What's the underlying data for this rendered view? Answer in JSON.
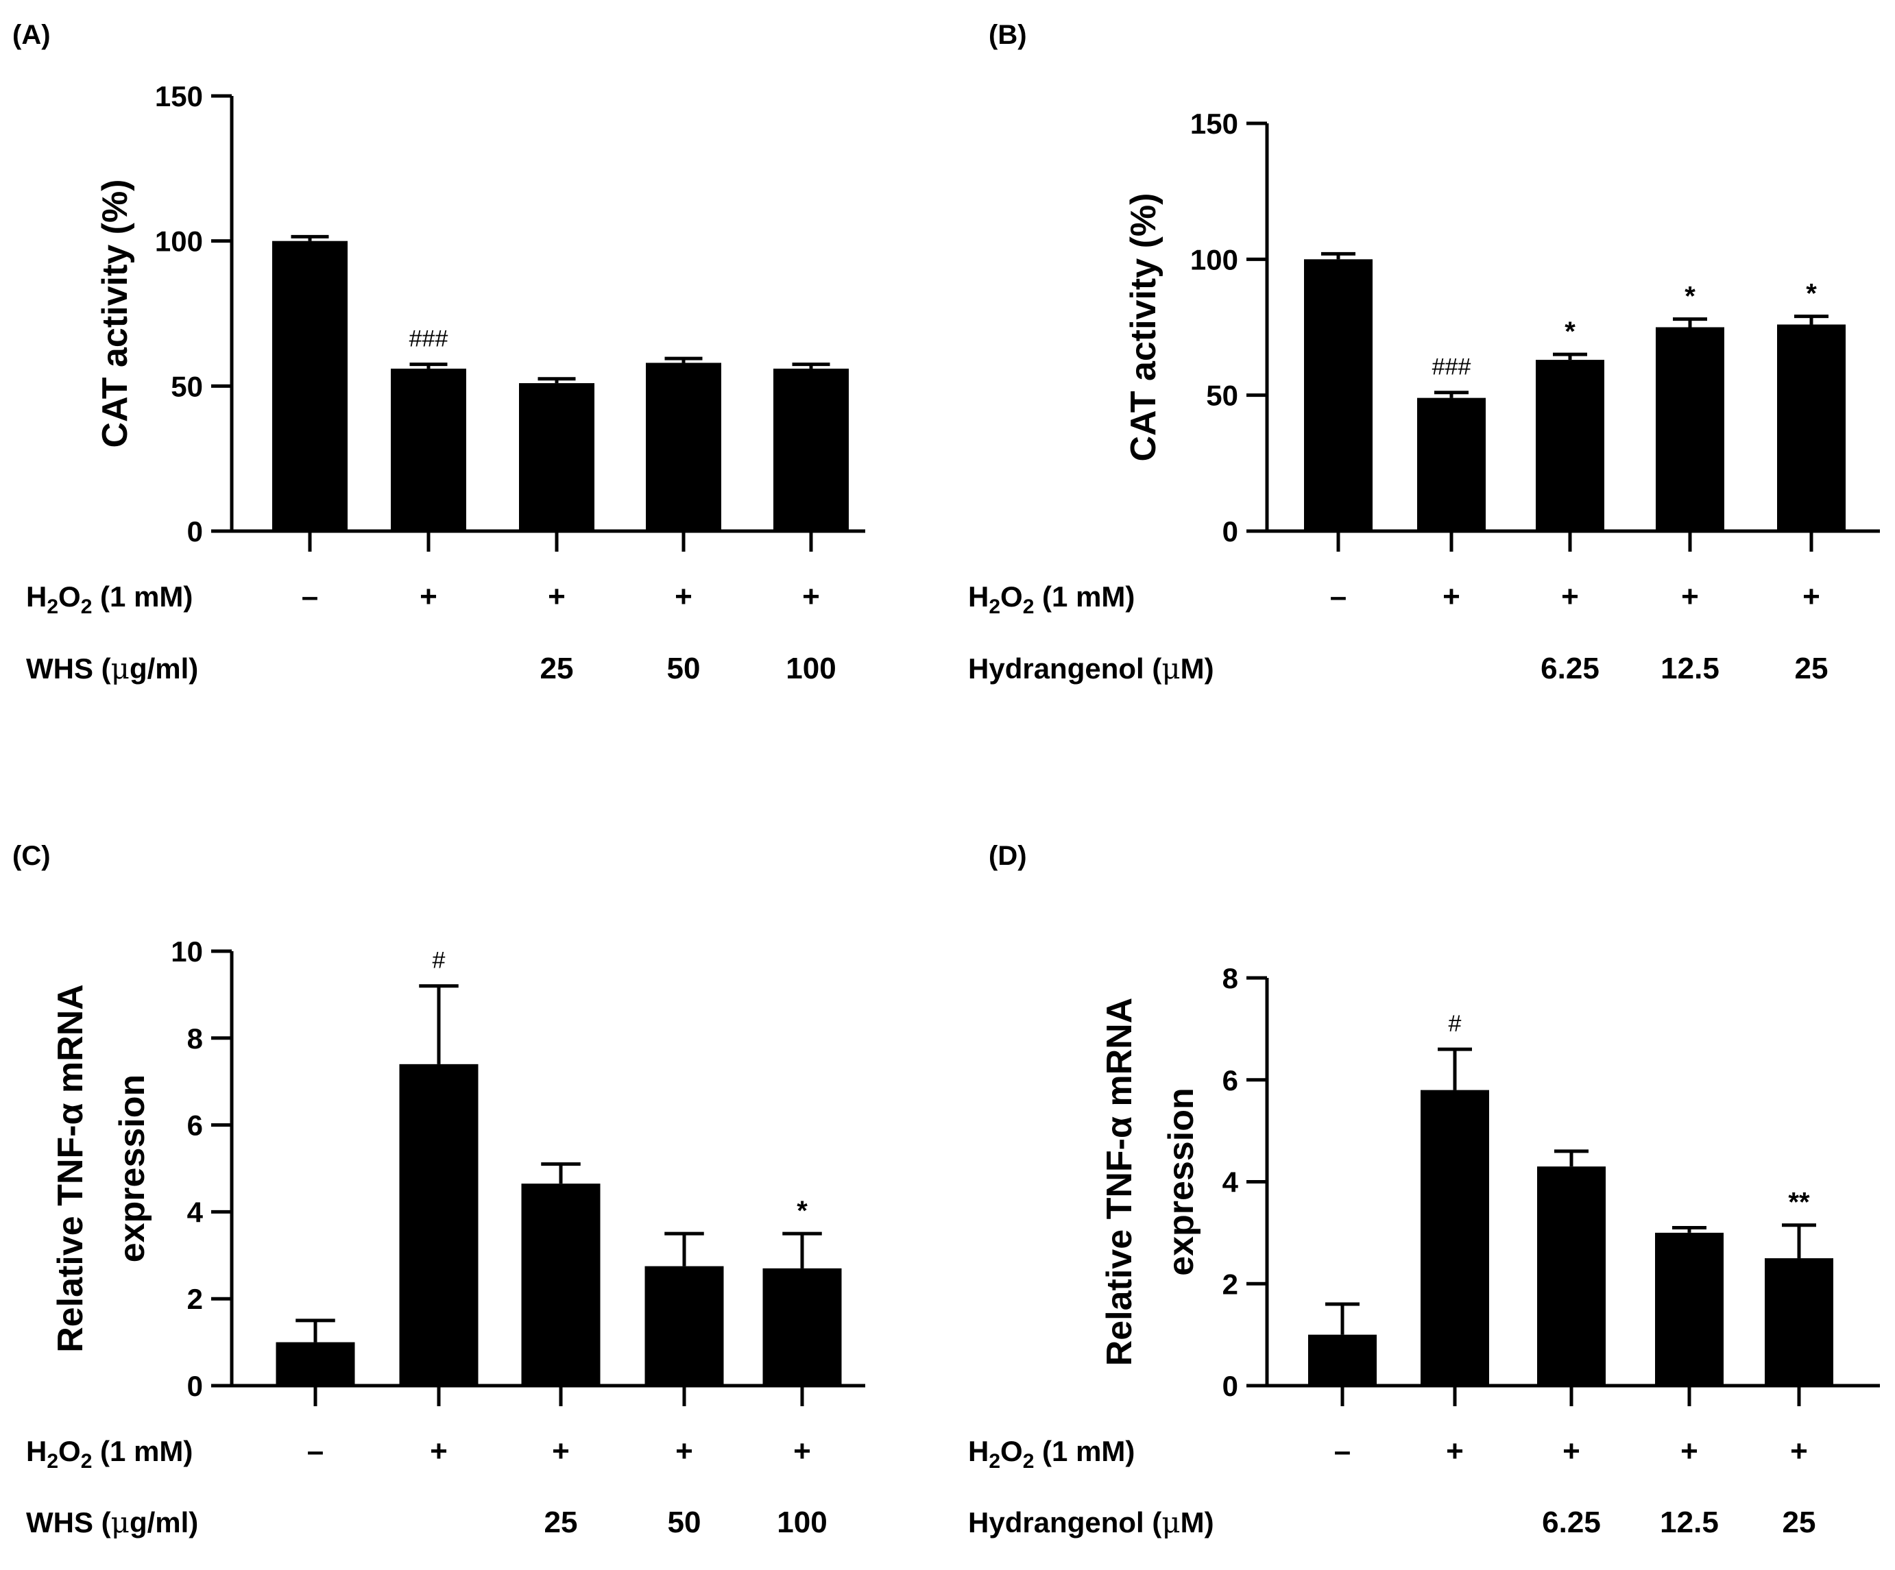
{
  "chart_data": [
    {
      "panel_label": "(A)",
      "type": "bar",
      "ylabel": "CAT activity (%)",
      "ylim": [
        0,
        150
      ],
      "yticks": [
        0,
        50,
        100,
        150
      ],
      "values": [
        100,
        56,
        51,
        58,
        56
      ],
      "errors": [
        1.5,
        1.5,
        1.5,
        1.5,
        1.5
      ],
      "annotations": [
        "",
        "###",
        "",
        "",
        ""
      ],
      "rows": [
        {
          "label_main": "H",
          "label_sub1": "2",
          "label_mid": "O",
          "label_sub2": "2",
          "label_rest": " (1 mM)",
          "cells": [
            "–",
            "+",
            "+",
            "+",
            "+"
          ]
        },
        {
          "label_main": "WHS (",
          "label_mu": "μ",
          "label_rest": "g/ml)",
          "cells": [
            "",
            "",
            "25",
            "50",
            "100"
          ]
        }
      ]
    },
    {
      "panel_label": "(B)",
      "type": "bar",
      "ylabel": "CAT activity (%)",
      "ylim": [
        0,
        150
      ],
      "yticks": [
        0,
        50,
        100,
        150
      ],
      "values": [
        100,
        49,
        63,
        75,
        76
      ],
      "errors": [
        2,
        2,
        2,
        3,
        3
      ],
      "annotations": [
        "",
        "###",
        "*",
        "*",
        "*"
      ],
      "rows": [
        {
          "label_main": "H",
          "label_sub1": "2",
          "label_mid": "O",
          "label_sub2": "2",
          "label_rest": " (1 mM)",
          "cells": [
            "–",
            "+",
            "+",
            "+",
            "+"
          ]
        },
        {
          "label_main": "Hydrangenol (",
          "label_mu": "μ",
          "label_rest": "M)",
          "cells": [
            "",
            "",
            "6.25",
            "12.5",
            "25"
          ]
        }
      ]
    },
    {
      "panel_label": "(C)",
      "type": "bar",
      "ylabel": "Relative TNF-α mRNA\nexpression",
      "ylabel_line1": "Relative TNF-α mRNA",
      "ylabel_line2": "expression",
      "ylim": [
        0,
        10
      ],
      "yticks": [
        0,
        2,
        4,
        6,
        8,
        10
      ],
      "values": [
        1.0,
        7.4,
        4.65,
        2.75,
        2.7
      ],
      "errors": [
        0.5,
        1.8,
        0.45,
        0.75,
        0.8
      ],
      "annotations": [
        "",
        "#",
        "",
        "",
        "*"
      ],
      "rows": [
        {
          "label_main": "H",
          "label_sub1": "2",
          "label_mid": "O",
          "label_sub2": "2",
          "label_rest": " (1 mM)",
          "cells": [
            "–",
            "+",
            "+",
            "+",
            "+"
          ]
        },
        {
          "label_main": "WHS (",
          "label_mu": "μ",
          "label_rest": "g/ml)",
          "cells": [
            "",
            "",
            "25",
            "50",
            "100"
          ]
        }
      ]
    },
    {
      "panel_label": "(D)",
      "type": "bar",
      "ylabel": "Relative TNF-α mRNA\nexpression",
      "ylabel_line1": "Relative TNF-α mRNA",
      "ylabel_line2": "expression",
      "ylim": [
        0,
        8
      ],
      "yticks": [
        0,
        2,
        4,
        6,
        8
      ],
      "values": [
        1.0,
        5.8,
        4.3,
        3.0,
        2.5
      ],
      "errors": [
        0.6,
        0.8,
        0.3,
        0.1,
        0.65
      ],
      "annotations": [
        "",
        "#",
        "",
        "",
        "**"
      ],
      "rows": [
        {
          "label_main": "H",
          "label_sub1": "2",
          "label_mid": "O",
          "label_sub2": "2",
          "label_rest": " (1 mM)",
          "cells": [
            "–",
            "+",
            "+",
            "+",
            "+"
          ]
        },
        {
          "label_main": "Hydrangenol (",
          "label_mu": "μ",
          "label_rest": "M)",
          "cells": [
            "",
            "",
            "6.25",
            "12.5",
            "25"
          ]
        }
      ]
    }
  ]
}
